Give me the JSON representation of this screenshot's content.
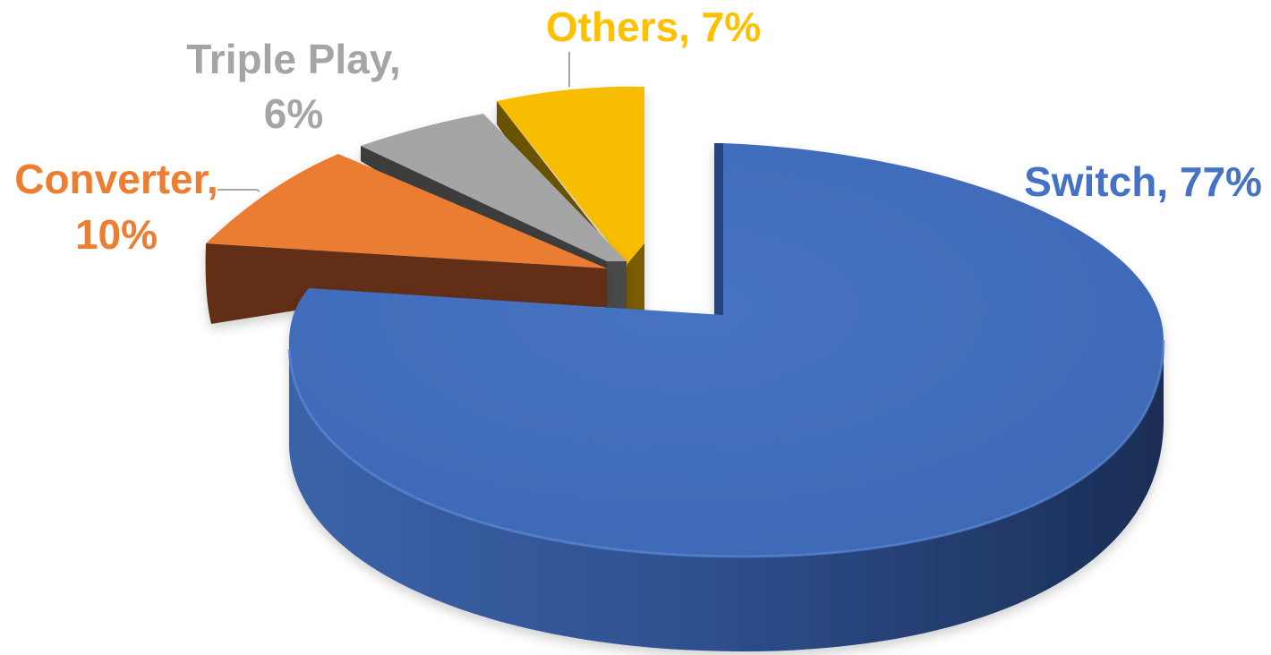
{
  "chart_data": {
    "type": "pie",
    "style": "3d-exploded",
    "title": "",
    "slices": [
      {
        "label": "Switch",
        "value": 77,
        "color": "#4472C4",
        "label_text": "Switch, 77%"
      },
      {
        "label": "Converter",
        "value": 10,
        "color": "#ED7D31",
        "label_text_line1": "Converter,",
        "label_text_line2": "10%"
      },
      {
        "label": "Triple Play",
        "value": 6,
        "color": "#A5A5A5",
        "label_text_line1": "Triple Play,",
        "label_text_line2": "6%"
      },
      {
        "label": "Others",
        "value": 7,
        "color": "#FFC000",
        "label_text": "Others, 7%"
      }
    ],
    "legend": "none",
    "data_labels": "outside"
  }
}
